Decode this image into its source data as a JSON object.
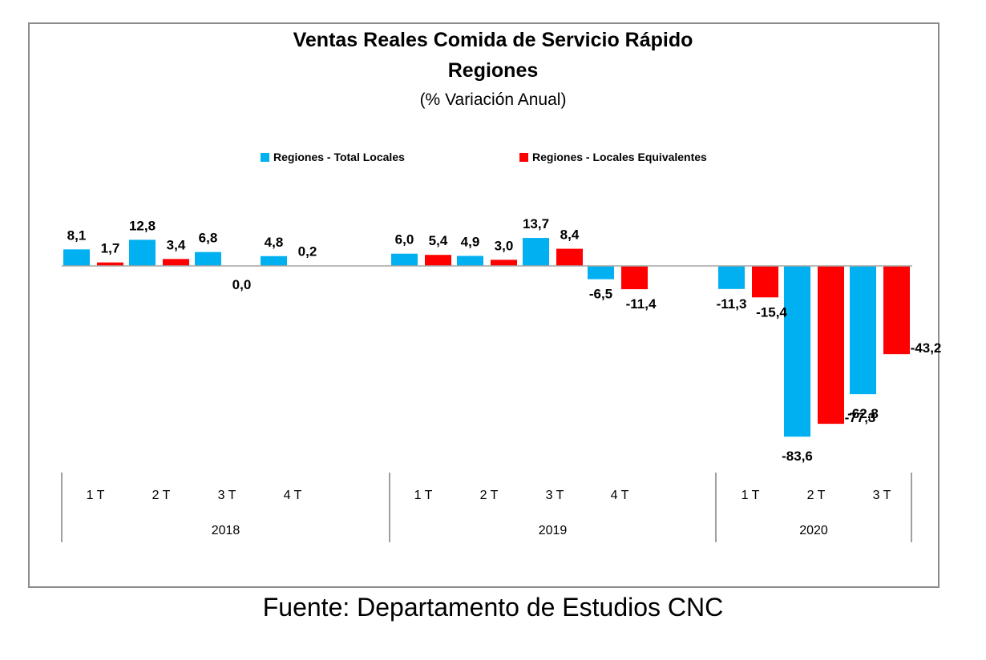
{
  "chart_data": {
    "type": "bar",
    "title": "Ventas Reales Comida de Servicio Rápido",
    "title_line2": "Regiones",
    "subtitle": "(% Variación Anual)",
    "source": "Fuente: Departamento de Estudios CNC",
    "groups": [
      {
        "year": "2018",
        "quarters": [
          "1 T",
          "2 T",
          "3 T",
          "4 T"
        ]
      },
      {
        "year": "2019",
        "quarters": [
          "1 T",
          "2 T",
          "3 T",
          "4 T"
        ]
      },
      {
        "year": "2020",
        "quarters": [
          "1 T",
          "2 T",
          "3 T"
        ]
      }
    ],
    "series": [
      {
        "name": "Regiones - Total Locales",
        "color": "#00b0f0",
        "values": [
          8.1,
          12.8,
          6.8,
          4.8,
          6.0,
          4.9,
          13.7,
          -6.5,
          -11.3,
          -83.6,
          -62.8
        ],
        "labels": [
          "8,1",
          "12,8",
          "6,8",
          "4,8",
          "6,0",
          "4,9",
          "13,7",
          "-6,5",
          "-11,3",
          "-83,6",
          "-62,8"
        ]
      },
      {
        "name": "Regiones - Locales Equivalentes",
        "color": "#ff0000",
        "values": [
          1.7,
          3.4,
          0.0,
          0.2,
          5.4,
          3.0,
          8.4,
          -11.4,
          -15.4,
          -77.3,
          -43.2
        ],
        "labels": [
          "1,7",
          "3,4",
          "0,0",
          "0,2",
          "5,4",
          "3,0",
          "8,4",
          "-11,4",
          "-15,4",
          "-77,3",
          "-43,2"
        ]
      }
    ],
    "legend_position": "top-center",
    "grid": false
  }
}
